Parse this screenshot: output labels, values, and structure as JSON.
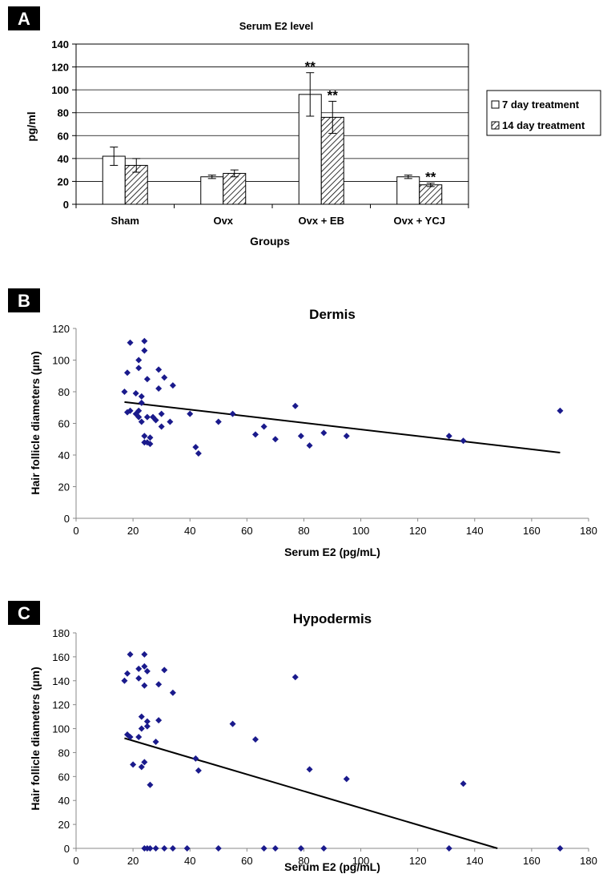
{
  "panels": {
    "a": "A",
    "b": "B",
    "c": "C"
  },
  "colors": {
    "marker": "#1a1a8c",
    "line": "#000000",
    "panel_bg": "#000000"
  },
  "chart_data": [
    {
      "type": "bar",
      "title": "Serum E2 level",
      "xlabel": "Groups",
      "ylabel": "pg/ml",
      "ylim": [
        0,
        140
      ],
      "yticks": [
        0,
        20,
        40,
        60,
        80,
        100,
        120,
        140
      ],
      "grid": true,
      "legend_position": "right",
      "categories": [
        "Sham",
        "Ovx",
        "Ovx + EB",
        "Ovx + YCJ"
      ],
      "series": [
        {
          "name": "7 day treatment",
          "fill": "white",
          "values": [
            42,
            24,
            96,
            24
          ],
          "errors": [
            8,
            1.5,
            19,
            1.5
          ]
        },
        {
          "name": "14 day treatment",
          "fill": "hatched",
          "values": [
            34,
            27,
            76,
            17
          ],
          "errors": [
            6,
            3,
            14,
            1.5
          ]
        }
      ],
      "annotations": [
        {
          "category": 2,
          "series": 0,
          "text": "**"
        },
        {
          "category": 2,
          "series": 1,
          "text": "**"
        },
        {
          "category": 3,
          "series": 1,
          "text": "**"
        }
      ]
    },
    {
      "type": "scatter",
      "title": "Dermis",
      "xlabel": "Serum E2 (pg/mL)",
      "ylabel": "Hair follicle diameters (µm)",
      "xlim": [
        0,
        180
      ],
      "ylim": [
        0,
        120
      ],
      "xticks": [
        0,
        20,
        40,
        60,
        80,
        100,
        120,
        140,
        160,
        180
      ],
      "yticks": [
        0,
        20,
        40,
        60,
        80,
        100,
        120
      ],
      "points": [
        [
          17,
          80
        ],
        [
          18,
          92
        ],
        [
          18,
          67
        ],
        [
          19,
          68
        ],
        [
          19,
          111
        ],
        [
          21,
          66
        ],
        [
          21,
          79
        ],
        [
          22,
          64
        ],
        [
          22,
          68
        ],
        [
          22,
          95
        ],
        [
          22,
          100
        ],
        [
          23,
          61
        ],
        [
          23,
          73
        ],
        [
          23,
          77
        ],
        [
          24,
          106
        ],
        [
          24,
          48
        ],
        [
          24,
          112
        ],
        [
          24,
          52
        ],
        [
          25,
          64
        ],
        [
          25,
          88
        ],
        [
          25,
          48
        ],
        [
          26,
          51
        ],
        [
          26,
          47
        ],
        [
          27,
          64
        ],
        [
          28,
          62
        ],
        [
          29,
          82
        ],
        [
          29,
          94
        ],
        [
          30,
          58
        ],
        [
          30,
          66
        ],
        [
          31,
          89
        ],
        [
          33,
          61
        ],
        [
          34,
          84
        ],
        [
          40,
          66
        ],
        [
          42,
          45
        ],
        [
          43,
          41
        ],
        [
          50,
          61
        ],
        [
          55,
          66
        ],
        [
          63,
          53
        ],
        [
          66,
          58
        ],
        [
          70,
          50
        ],
        [
          77,
          71
        ],
        [
          79,
          52
        ],
        [
          82,
          46
        ],
        [
          87,
          54
        ],
        [
          95,
          52
        ],
        [
          131,
          52
        ],
        [
          136,
          49
        ],
        [
          170,
          68
        ]
      ],
      "trendline": {
        "x": [
          17,
          170
        ],
        "y": [
          73.5,
          41.5
        ]
      }
    },
    {
      "type": "scatter",
      "title": "Hypodermis",
      "xlabel": "Serum E2 (pg/mL)",
      "ylabel": "Hair follicle diameters (µm)",
      "xlim": [
        0,
        180
      ],
      "ylim": [
        0,
        180
      ],
      "xticks": [
        0,
        20,
        40,
        60,
        80,
        100,
        120,
        140,
        160,
        180
      ],
      "yticks": [
        0,
        20,
        40,
        60,
        80,
        100,
        120,
        140,
        160,
        180
      ],
      "points": [
        [
          17,
          140
        ],
        [
          18,
          146
        ],
        [
          18,
          95
        ],
        [
          19,
          93
        ],
        [
          19,
          162
        ],
        [
          20,
          70
        ],
        [
          22,
          150
        ],
        [
          22,
          142
        ],
        [
          22,
          93
        ],
        [
          23,
          110
        ],
        [
          23,
          100
        ],
        [
          23,
          68
        ],
        [
          24,
          136
        ],
        [
          24,
          152
        ],
        [
          24,
          162
        ],
        [
          24,
          72
        ],
        [
          24,
          0
        ],
        [
          25,
          106
        ],
        [
          25,
          102
        ],
        [
          25,
          148
        ],
        [
          25,
          0
        ],
        [
          26,
          53
        ],
        [
          26,
          0
        ],
        [
          28,
          89
        ],
        [
          28,
          0
        ],
        [
          29,
          137
        ],
        [
          29,
          107
        ],
        [
          31,
          149
        ],
        [
          31,
          0
        ],
        [
          34,
          130
        ],
        [
          34,
          0
        ],
        [
          39,
          0
        ],
        [
          42,
          75
        ],
        [
          43,
          65
        ],
        [
          50,
          0
        ],
        [
          55,
          104
        ],
        [
          63,
          91
        ],
        [
          66,
          0
        ],
        [
          70,
          0
        ],
        [
          77,
          143
        ],
        [
          79,
          0
        ],
        [
          82,
          66
        ],
        [
          87,
          0
        ],
        [
          95,
          58
        ],
        [
          131,
          0
        ],
        [
          136,
          54
        ],
        [
          170,
          0
        ]
      ],
      "trendline": {
        "x": [
          17,
          148
        ],
        "y": [
          92,
          0
        ]
      }
    }
  ]
}
